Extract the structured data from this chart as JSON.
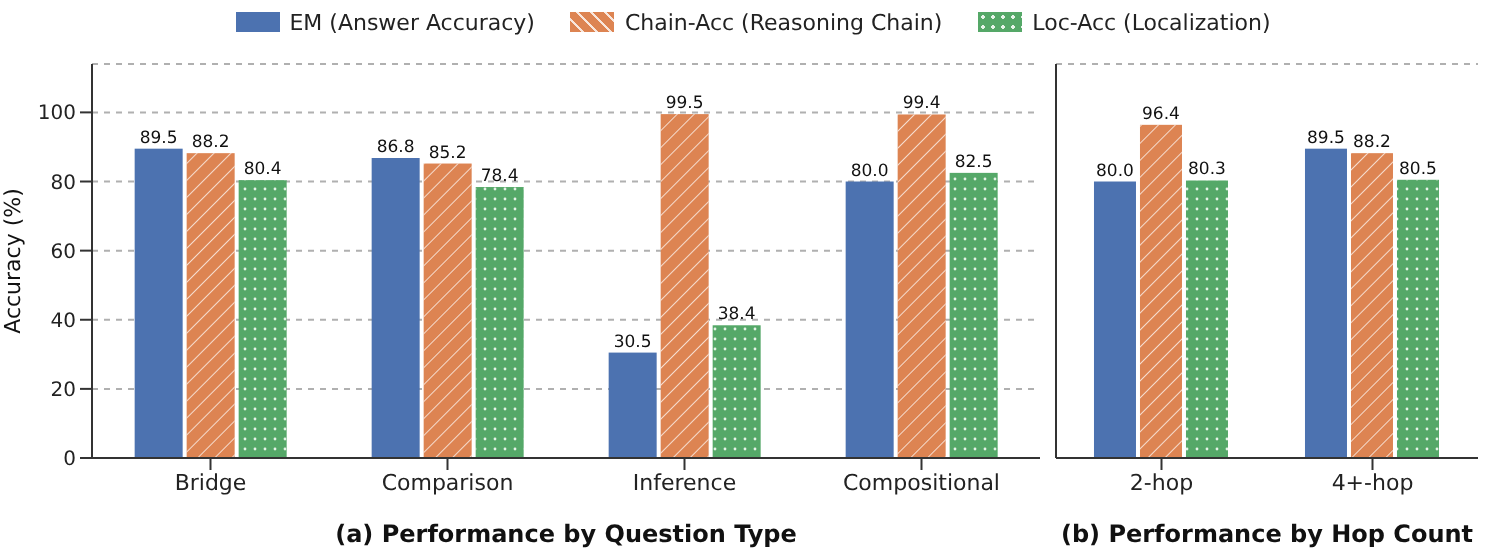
{
  "chart_data": [
    {
      "type": "bar",
      "xlabel": "(a) Performance by Question Type",
      "ylabel": "Accuracy (%)",
      "categories": [
        "Bridge",
        "Comparison",
        "Inference",
        "Compositional"
      ],
      "series": [
        {
          "name": "EM (Answer Accuracy)",
          "color": "#4c72b0",
          "values": [
            89.5,
            86.8,
            30.5,
            80.0
          ],
          "value_labels": [
            "89.5",
            "86.8",
            "30.5",
            "80.0"
          ]
        },
        {
          "name": "Chain-Acc (Reasoning Chain)",
          "color": "#dd8452",
          "values": [
            88.2,
            85.2,
            99.5,
            99.4
          ],
          "value_labels": [
            "88.2",
            "85.2",
            "99.5",
            "99.4"
          ]
        },
        {
          "name": "Loc-Acc (Localization)",
          "color": "#55a868",
          "values": [
            80.4,
            78.4,
            38.4,
            82.5
          ],
          "value_labels": [
            "80.4",
            "78.4",
            "38.4",
            "82.5"
          ]
        }
      ],
      "ylim": [
        0,
        114
      ],
      "yticks": [
        0,
        20,
        40,
        60,
        80,
        100
      ],
      "grid": "y",
      "legend": "top"
    },
    {
      "type": "bar",
      "xlabel": "(b) Performance by Hop Count",
      "categories": [
        "2-hop",
        "4+-hop"
      ],
      "series": [
        {
          "color": "#4c72b0",
          "values": [
            80.0,
            89.5
          ],
          "value_labels": [
            "80.0",
            "89.5"
          ]
        },
        {
          "color": "#dd8452",
          "values": [
            96.4,
            88.2
          ],
          "value_labels": [
            "96.4",
            "88.2"
          ]
        },
        {
          "color": "#55a868",
          "values": [
            80.3,
            80.5
          ],
          "value_labels": [
            "80.3",
            "80.5"
          ]
        }
      ],
      "ylim": [
        0,
        114
      ],
      "yticks": [
        0,
        20,
        40,
        60,
        80,
        100
      ],
      "grid": "y",
      "tick_labels": "x"
    }
  ]
}
